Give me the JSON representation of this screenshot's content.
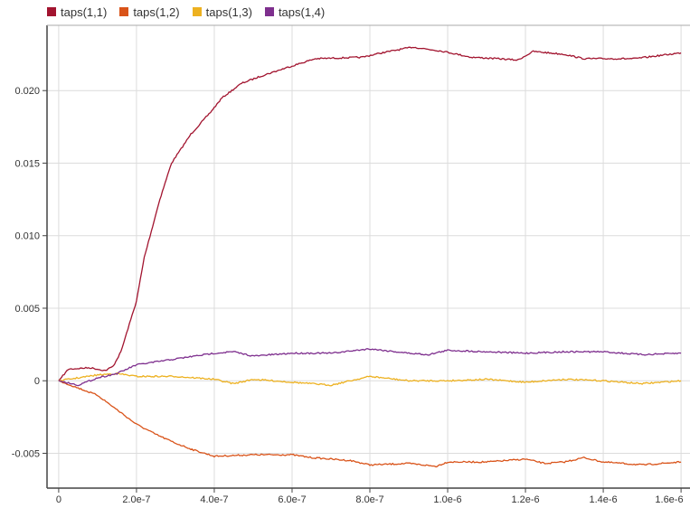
{
  "chart_data": {
    "type": "line",
    "title": "",
    "xlabel": "",
    "ylabel": "",
    "legend_placement": "top-left",
    "grid": true,
    "xlim": [
      -3e-08,
      1.623e-06
    ],
    "ylim": [
      -0.0074,
      0.0245
    ],
    "xticks": [
      0,
      2e-07,
      4e-07,
      6e-07,
      8e-07,
      1e-06,
      1.2e-06,
      1.4e-06,
      1.6e-06
    ],
    "xtick_labels": [
      "0",
      "2.0e-7",
      "4.0e-7",
      "6.0e-7",
      "8.0e-7",
      "1.0e-6",
      "1.2e-6",
      "1.4e-6",
      "1.6e-6"
    ],
    "yticks": [
      -0.005,
      0,
      0.005,
      0.01,
      0.015,
      0.02
    ],
    "ytick_labels": [
      "-0.005",
      "0",
      "0.005",
      "0.010",
      "0.015",
      "0.020"
    ],
    "series": [
      {
        "name": "taps(1,1)",
        "color": "#a2142f",
        "x": [
          0,
          2.5e-08,
          8e-08,
          1.2e-07,
          1.4e-07,
          1.6e-07,
          2e-07,
          2.2e-07,
          2.6e-07,
          2.9e-07,
          3.4e-07,
          3.9e-07,
          4.2e-07,
          4.7e-07,
          5.2e-07,
          6e-07,
          6.6e-07,
          7.8e-07,
          8.3e-07,
          9.1e-07,
          9.9e-07,
          1.06e-06,
          1.13e-06,
          1.18e-06,
          1.22e-06,
          1.3e-06,
          1.35e-06,
          1.48e-06,
          1.6e-06
        ],
        "y": [
          0,
          0.0008,
          0.0009,
          0.0007,
          0.001,
          0.002,
          0.0055,
          0.0085,
          0.0125,
          0.015,
          0.017,
          0.0185,
          0.0195,
          0.0205,
          0.021,
          0.0217,
          0.0222,
          0.0223,
          0.0226,
          0.023,
          0.0227,
          0.0223,
          0.0222,
          0.0221,
          0.0227,
          0.0225,
          0.0222,
          0.0222,
          0.0226
        ]
      },
      {
        "name": "taps(1,2)",
        "color": "#d95319",
        "x": [
          0,
          5e-08,
          1e-07,
          1.5e-07,
          2e-07,
          2.5e-07,
          3e-07,
          3.5e-07,
          4e-07,
          5e-07,
          6e-07,
          6.5e-07,
          7.5e-07,
          8e-07,
          9e-07,
          9.7e-07,
          1e-06,
          1.1e-06,
          1.2e-06,
          1.25e-06,
          1.3e-06,
          1.35e-06,
          1.4e-06,
          1.5e-06,
          1.6e-06
        ],
        "y": [
          0,
          -0.0005,
          -0.001,
          -0.002,
          -0.003,
          -0.0037,
          -0.0043,
          -0.0048,
          -0.0052,
          -0.0051,
          -0.0051,
          -0.0053,
          -0.0055,
          -0.0058,
          -0.0057,
          -0.0059,
          -0.0056,
          -0.0056,
          -0.0054,
          -0.0057,
          -0.0056,
          -0.0053,
          -0.0056,
          -0.0058,
          -0.0056
        ]
      },
      {
        "name": "taps(1,3)",
        "color": "#edb120",
        "x": [
          0,
          5e-08,
          1e-07,
          1.5e-07,
          2e-07,
          3e-07,
          4e-07,
          4.5e-07,
          5e-07,
          6e-07,
          7e-07,
          8e-07,
          9e-07,
          1e-06,
          1.1e-06,
          1.2e-06,
          1.3e-06,
          1.4e-06,
          1.5e-06,
          1.6e-06
        ],
        "y": [
          0,
          0.0002,
          0.0004,
          0.0005,
          0.0003,
          0.0003,
          0.0001,
          -0.0002,
          0.0001,
          -0.0001,
          -0.0003,
          0.0003,
          0,
          0,
          0.0001,
          -0.0001,
          0.0001,
          0,
          -0.0002,
          0
        ]
      },
      {
        "name": "taps(1,4)",
        "color": "#7e2f8e",
        "x": [
          0,
          5e-08,
          1e-07,
          1.5e-07,
          2e-07,
          2.5e-07,
          3e-07,
          4e-07,
          4.5e-07,
          5e-07,
          6e-07,
          7e-07,
          8e-07,
          9e-07,
          9.5e-07,
          1e-06,
          1.1e-06,
          1.2e-06,
          1.3e-06,
          1.4e-06,
          1.5e-06,
          1.6e-06
        ],
        "y": [
          0,
          -0.0003,
          0.0002,
          0.0005,
          0.0011,
          0.0013,
          0.0015,
          0.0019,
          0.002,
          0.0017,
          0.0019,
          0.0019,
          0.0022,
          0.0019,
          0.0018,
          0.0021,
          0.002,
          0.0019,
          0.002,
          0.002,
          0.0018,
          0.0019
        ]
      }
    ]
  }
}
